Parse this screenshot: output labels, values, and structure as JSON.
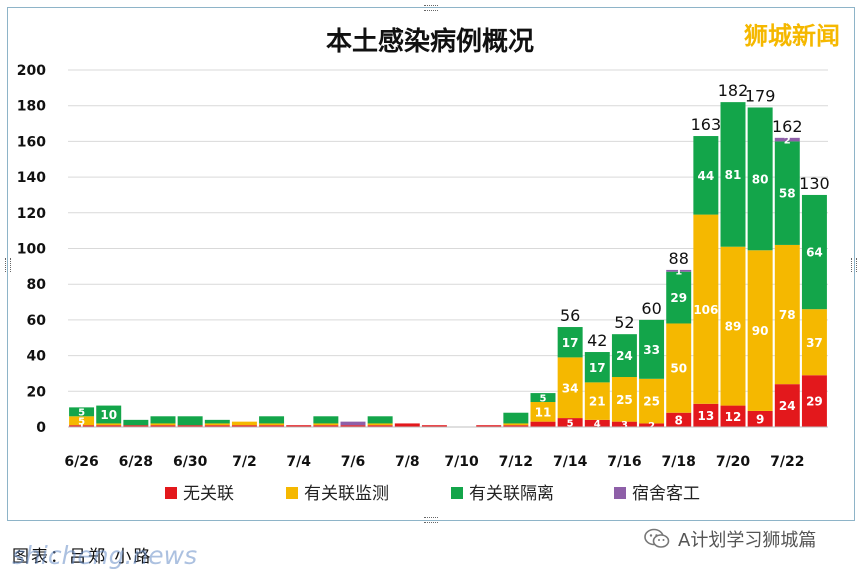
{
  "chart_data": {
    "type": "bar",
    "stacked": true,
    "title": "本土感染病例概况",
    "categories": [
      "6/26",
      "6/27",
      "6/28",
      "6/29",
      "6/30",
      "7/1",
      "7/2",
      "7/3",
      "7/4",
      "7/5",
      "7/6",
      "7/7",
      "7/8",
      "7/9",
      "7/10",
      "7/11",
      "7/12",
      "7/13",
      "7/14",
      "7/15",
      "7/16",
      "7/17",
      "7/18",
      "7/19",
      "7/20",
      "7/21",
      "7/22",
      "7/23"
    ],
    "tick_labels": [
      "6/26",
      "6/28",
      "6/30",
      "7/2",
      "7/4",
      "7/6",
      "7/8",
      "7/10",
      "7/12",
      "7/14",
      "7/16",
      "7/18",
      "7/20",
      "7/22"
    ],
    "series": [
      {
        "name": "无关联",
        "color": "#e3181c",
        "values": [
          1,
          1,
          1,
          1,
          1,
          1,
          1,
          1,
          1,
          1,
          1,
          1,
          2,
          1,
          0,
          1,
          1,
          3,
          5,
          4,
          3,
          2,
          8,
          13,
          12,
          9,
          24,
          29
        ]
      },
      {
        "name": "有关联监测",
        "color": "#f5b800",
        "values": [
          5,
          1,
          0,
          1,
          0,
          1,
          2,
          1,
          0,
          1,
          0,
          1,
          0,
          0,
          0,
          0,
          1,
          11,
          34,
          21,
          25,
          25,
          50,
          106,
          89,
          90,
          78,
          37
        ]
      },
      {
        "name": "有关联隔离",
        "color": "#13a54a",
        "values": [
          5,
          10,
          3,
          4,
          5,
          2,
          0,
          4,
          0,
          4,
          0,
          4,
          0,
          0,
          0,
          0,
          6,
          5,
          17,
          17,
          24,
          33,
          29,
          44,
          81,
          80,
          58,
          64
        ]
      },
      {
        "name": "宿舍客工",
        "color": "#8e5fa8",
        "values": [
          0,
          0,
          0,
          0,
          0,
          0,
          0,
          0,
          0,
          0,
          2,
          0,
          0,
          0,
          0,
          0,
          0,
          0,
          0,
          0,
          0,
          0,
          1,
          0,
          0,
          0,
          2,
          0
        ]
      }
    ],
    "segment_labels": [
      {
        "series": 0,
        "index": 0,
        "text": "1"
      },
      {
        "series": 1,
        "index": 0,
        "text": "5"
      },
      {
        "series": 2,
        "index": 0,
        "text": "5"
      },
      {
        "series": 2,
        "index": 1,
        "text": "10"
      },
      {
        "series": 2,
        "index": 17,
        "text": "5"
      },
      {
        "series": 1,
        "index": 17,
        "text": "11"
      },
      {
        "series": 0,
        "index": 18,
        "text": "5"
      },
      {
        "series": 1,
        "index": 18,
        "text": "34"
      },
      {
        "series": 2,
        "index": 18,
        "text": "17"
      },
      {
        "series": 0,
        "index": 19,
        "text": "4"
      },
      {
        "series": 1,
        "index": 19,
        "text": "21"
      },
      {
        "series": 2,
        "index": 19,
        "text": "17"
      },
      {
        "series": 0,
        "index": 20,
        "text": "3"
      },
      {
        "series": 1,
        "index": 20,
        "text": "25"
      },
      {
        "series": 2,
        "index": 20,
        "text": "24"
      },
      {
        "series": 0,
        "index": 21,
        "text": "2"
      },
      {
        "series": 1,
        "index": 21,
        "text": "25"
      },
      {
        "series": 2,
        "index": 21,
        "text": "33"
      },
      {
        "series": 0,
        "index": 22,
        "text": "8"
      },
      {
        "series": 1,
        "index": 22,
        "text": "50"
      },
      {
        "series": 2,
        "index": 22,
        "text": "29"
      },
      {
        "series": 3,
        "index": 22,
        "text": "1"
      },
      {
        "series": 0,
        "index": 23,
        "text": "13"
      },
      {
        "series": 1,
        "index": 23,
        "text": "106"
      },
      {
        "series": 2,
        "index": 23,
        "text": "44"
      },
      {
        "series": 0,
        "index": 24,
        "text": "12"
      },
      {
        "series": 1,
        "index": 24,
        "text": "89"
      },
      {
        "series": 2,
        "index": 24,
        "text": "81"
      },
      {
        "series": 0,
        "index": 25,
        "text": "9"
      },
      {
        "series": 1,
        "index": 25,
        "text": "90"
      },
      {
        "series": 2,
        "index": 25,
        "text": "80"
      },
      {
        "series": 0,
        "index": 26,
        "text": "24"
      },
      {
        "series": 1,
        "index": 26,
        "text": "78"
      },
      {
        "series": 2,
        "index": 26,
        "text": "58"
      },
      {
        "series": 3,
        "index": 26,
        "text": "2"
      },
      {
        "series": 0,
        "index": 27,
        "text": "29"
      },
      {
        "series": 1,
        "index": 27,
        "text": "37"
      },
      {
        "series": 2,
        "index": 27,
        "text": "64"
      }
    ],
    "totals": [
      {
        "index": 18,
        "text": "56"
      },
      {
        "index": 19,
        "text": "42"
      },
      {
        "index": 20,
        "text": "52"
      },
      {
        "index": 21,
        "text": "60"
      },
      {
        "index": 22,
        "text": "88"
      },
      {
        "index": 23,
        "text": "163"
      },
      {
        "index": 24,
        "text": "182"
      },
      {
        "index": 25,
        "text": "179"
      },
      {
        "index": 26,
        "text": "162"
      },
      {
        "index": 27,
        "text": "130"
      }
    ],
    "ylim": [
      0,
      200
    ],
    "yticks": [
      0,
      20,
      40,
      60,
      80,
      100,
      120,
      140,
      160,
      180,
      200
    ],
    "grid": true,
    "legend_position": "bottom"
  },
  "watermark_top": "狮城新闻",
  "caption": "图表：吕郑 小路",
  "caption_overlay": "shicheng.news",
  "account_name": "A计划学习狮城篇"
}
